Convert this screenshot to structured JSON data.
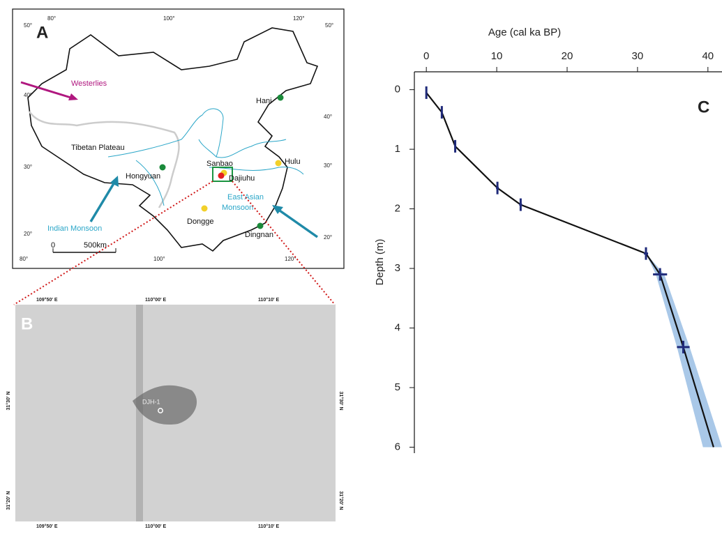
{
  "map_a": {
    "panel_label": "A",
    "top_labels": [
      "50°",
      "80°",
      "100°",
      "120°",
      "50°"
    ],
    "right_labels": [
      "40°",
      "30°",
      "20°"
    ],
    "left_labels": [
      "40°",
      "30°",
      "20°"
    ],
    "bottom_labels": [
      "80°",
      "100°",
      "120°"
    ],
    "places": {
      "westerlies": "Westerlies",
      "hani": "Hani",
      "tibet": "Tibetan Plateau",
      "sanbao": "Sanbao",
      "dajiuhu": "Dajiuhu",
      "hulu": "Hulu",
      "hongyuan": "Hongyuan",
      "eam1": "East Asian",
      "eam2": "Monsoon",
      "indian": "Indian Monsoon",
      "dongge": "Dongge",
      "dingnan": "Dingnan"
    },
    "scale": [
      "0",
      "500km"
    ]
  },
  "map_b": {
    "panel_label": "B",
    "lon_labels": [
      "109°50' E",
      "110°00' E",
      "110°10' E"
    ],
    "lat_labels": [
      "31°30' N",
      "31°20' N"
    ],
    "site": "DJH-1"
  },
  "chart_data": {
    "type": "line",
    "panel_label": "C",
    "x_label": "Age (cal ka BP)",
    "y_label": "Depth (m)",
    "xlim": [
      -1.7,
      42
    ],
    "ylim": [
      -0.3,
      6.1
    ],
    "y_inverted": true,
    "x_axis_position": "top",
    "xticks": [
      0,
      10,
      20,
      30,
      40
    ],
    "yticks": [
      0,
      1,
      2,
      3,
      4,
      5,
      6
    ],
    "series": [
      {
        "color": "#111111",
        "x": [
          0,
          2.2,
          4.1,
          10.1,
          13.4,
          31.2,
          33.2,
          36.5,
          40.8
        ],
        "values": [
          0.05,
          0.38,
          0.95,
          1.65,
          1.93,
          2.75,
          3.1,
          4.32,
          6.0
        ]
      }
    ],
    "dates": {
      "color": "#1f2a7a",
      "x": [
        0,
        2.2,
        4.1,
        10.1,
        13.4,
        31.2,
        33.2,
        36.5
      ],
      "values": [
        0.05,
        0.38,
        0.95,
        1.65,
        1.93,
        2.75,
        3.1,
        4.32
      ],
      "xerr": [
        0.1,
        0.1,
        0.1,
        0.2,
        0.2,
        0.3,
        1.0,
        0.9
      ]
    },
    "band": {
      "color": "#a9c8e8",
      "y": [
        2.75,
        3.1,
        4.32,
        6.0
      ],
      "x_low": [
        31.2,
        32.6,
        35.6,
        39.3
      ],
      "x_high": [
        31.2,
        33.8,
        37.4,
        42
      ]
    }
  }
}
